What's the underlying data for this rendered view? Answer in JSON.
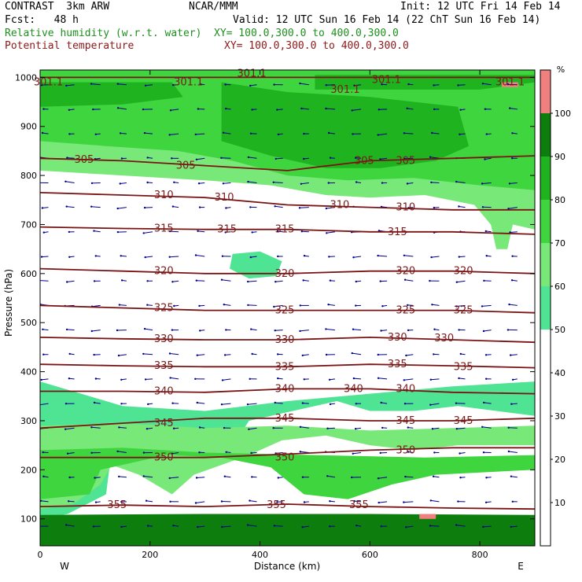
{
  "header": {
    "model": "CONTRAST  3km ARW",
    "org": "NCAR/MMM",
    "init": "Init: 12 UTC Fri 14 Feb 14",
    "fcst": "Fcst:   48 h",
    "valid": "Valid: 12 UTC Sun 16 Feb 14 (22 ChT Sun 16 Feb 14)",
    "rh_label": "Relative humidity (w.r.t. water)",
    "rh_xy": "XY= 100.0,300.0 to 400.0,300.0",
    "theta_label": "Potential temperature",
    "theta_xy": "XY= 100.0,300.0 to 400.0,300.0"
  },
  "colors": {
    "rh_text": "#1f8f1f",
    "theta_text": "#8b1a1a",
    "rh_fill": [
      "#ffffff",
      "#ffffff",
      "#ffffff",
      "#ffffff",
      "#ffffff",
      "#4fe394",
      "#78e878",
      "#3fd53f",
      "#1fb31f",
      "#0d7d0d",
      "#f08080"
    ],
    "theta_line": "#7a1414",
    "wind": "#00008b"
  },
  "chart_data": {
    "type": "heatmap",
    "xlabel": "Distance (km)",
    "ylabel": "Pressure (hPa)",
    "xlim": [
      0,
      900
    ],
    "ylim": [
      1015,
      45
    ],
    "x_ticks": [
      0,
      200,
      400,
      600,
      800
    ],
    "y_ticks": [
      100,
      200,
      300,
      400,
      500,
      600,
      700,
      800,
      900,
      1000
    ],
    "x_end_labels": {
      "left": "W",
      "right": "E"
    },
    "colorbar": {
      "unit": "%",
      "ticks": [
        10,
        20,
        30,
        40,
        50,
        60,
        70,
        80,
        90,
        100
      ],
      "levels": [
        0,
        10,
        20,
        30,
        40,
        50,
        60,
        70,
        80,
        90,
        100,
        110
      ]
    },
    "rh_regions": [
      {
        "rh": 65,
        "points": [
          [
            0,
            1015
          ],
          [
            0,
            810
          ],
          [
            150,
            800
          ],
          [
            300,
            790
          ],
          [
            420,
            780
          ],
          [
            520,
            760
          ],
          [
            600,
            755
          ],
          [
            700,
            760
          ],
          [
            790,
            740
          ],
          [
            820,
            700
          ],
          [
            830,
            650
          ],
          [
            850,
            650
          ],
          [
            860,
            700
          ],
          [
            900,
            690
          ],
          [
            900,
            1015
          ]
        ]
      },
      {
        "rh": 75,
        "points": [
          [
            0,
            1015
          ],
          [
            0,
            870
          ],
          [
            120,
            860
          ],
          [
            250,
            850
          ],
          [
            350,
            830
          ],
          [
            450,
            800
          ],
          [
            560,
            790
          ],
          [
            680,
            795
          ],
          [
            800,
            780
          ],
          [
            900,
            770
          ],
          [
            900,
            1015
          ]
        ]
      },
      {
        "rh": 85,
        "points": [
          [
            330,
            990
          ],
          [
            330,
            870
          ],
          [
            420,
            840
          ],
          [
            520,
            815
          ],
          [
            620,
            815
          ],
          [
            720,
            830
          ],
          [
            780,
            860
          ],
          [
            760,
            940
          ],
          [
            600,
            960
          ],
          [
            450,
            970
          ]
        ]
      },
      {
        "rh": 85,
        "points": [
          [
            0,
            990
          ],
          [
            0,
            940
          ],
          [
            150,
            945
          ],
          [
            260,
            960
          ],
          [
            240,
            990
          ]
        ]
      },
      {
        "rh": 85,
        "points": [
          [
            500,
            1005
          ],
          [
            500,
            975
          ],
          [
            800,
            975
          ],
          [
            900,
            990
          ],
          [
            900,
            1005
          ]
        ]
      },
      {
        "rh": 55,
        "points": [
          [
            0,
            380
          ],
          [
            0,
            100
          ],
          [
            50,
            110
          ],
          [
            120,
            150
          ],
          [
            130,
            240
          ],
          [
            190,
            220
          ],
          [
            240,
            160
          ],
          [
            280,
            210
          ],
          [
            340,
            230
          ],
          [
            380,
            300
          ],
          [
            460,
            320
          ],
          [
            540,
            340
          ],
          [
            600,
            320
          ],
          [
            680,
            320
          ],
          [
            760,
            330
          ],
          [
            900,
            310
          ],
          [
            900,
            380
          ],
          [
            750,
            370
          ],
          [
            600,
            355
          ],
          [
            450,
            340
          ],
          [
            300,
            320
          ],
          [
            150,
            330
          ]
        ]
      },
      {
        "rh": 65,
        "points": [
          [
            0,
            290
          ],
          [
            0,
            120
          ],
          [
            60,
            130
          ],
          [
            110,
            170
          ],
          [
            130,
            210
          ],
          [
            180,
            190
          ],
          [
            240,
            150
          ],
          [
            280,
            190
          ],
          [
            330,
            210
          ],
          [
            380,
            230
          ],
          [
            440,
            260
          ],
          [
            520,
            270
          ],
          [
            600,
            250
          ],
          [
            680,
            240
          ],
          [
            760,
            250
          ],
          [
            900,
            250
          ],
          [
            900,
            290
          ],
          [
            750,
            285
          ],
          [
            600,
            280
          ],
          [
            450,
            290
          ],
          [
            300,
            285
          ],
          [
            150,
            295
          ]
        ]
      },
      {
        "rh": 75,
        "points": [
          [
            0,
            240
          ],
          [
            0,
            140
          ],
          [
            90,
            150
          ],
          [
            110,
            200
          ],
          [
            230,
            230
          ],
          [
            330,
            225
          ],
          [
            420,
            205
          ],
          [
            480,
            150
          ],
          [
            560,
            140
          ],
          [
            640,
            170
          ],
          [
            720,
            190
          ],
          [
            900,
            200
          ],
          [
            900,
            230
          ],
          [
            700,
            225
          ],
          [
            500,
            230
          ],
          [
            300,
            235
          ],
          [
            150,
            245
          ]
        ]
      },
      {
        "rh": 95,
        "points": [
          [
            0,
            108
          ],
          [
            0,
            45
          ],
          [
            900,
            45
          ],
          [
            900,
            108
          ],
          [
            600,
            110
          ],
          [
            300,
            110
          ]
        ]
      },
      {
        "rh": 55,
        "points": [
          [
            350,
            640
          ],
          [
            345,
            610
          ],
          [
            380,
            590
          ],
          [
            430,
            595
          ],
          [
            440,
            625
          ],
          [
            400,
            645
          ]
        ]
      },
      {
        "rh": 105,
        "points": [
          [
            690,
            110
          ],
          [
            690,
            100
          ],
          [
            720,
            100
          ],
          [
            720,
            110
          ]
        ]
      },
      {
        "rh": 105,
        "points": [
          [
            840,
            990
          ],
          [
            840,
            980
          ],
          [
            870,
            980
          ],
          [
            870,
            990
          ]
        ]
      }
    ],
    "theta_contours": [
      {
        "level": 301.1,
        "points": [
          [
            0,
            1000
          ],
          [
            900,
            1000
          ]
        ]
      },
      {
        "level": 305,
        "points": [
          [
            0,
            835
          ],
          [
            150,
            830
          ],
          [
            300,
            820
          ],
          [
            450,
            810
          ],
          [
            600,
            830
          ],
          [
            750,
            835
          ],
          [
            900,
            840
          ]
        ]
      },
      {
        "level": 310,
        "points": [
          [
            0,
            765
          ],
          [
            150,
            760
          ],
          [
            300,
            755
          ],
          [
            450,
            740
          ],
          [
            600,
            735
          ],
          [
            750,
            730
          ],
          [
            900,
            730
          ]
        ]
      },
      {
        "level": 315,
        "points": [
          [
            0,
            695
          ],
          [
            150,
            692
          ],
          [
            300,
            690
          ],
          [
            450,
            690
          ],
          [
            600,
            685
          ],
          [
            750,
            685
          ],
          [
            900,
            680
          ]
        ]
      },
      {
        "level": 320,
        "points": [
          [
            0,
            610
          ],
          [
            150,
            605
          ],
          [
            300,
            600
          ],
          [
            450,
            600
          ],
          [
            600,
            605
          ],
          [
            750,
            605
          ],
          [
            900,
            600
          ]
        ]
      },
      {
        "level": 325,
        "points": [
          [
            0,
            535
          ],
          [
            150,
            530
          ],
          [
            300,
            525
          ],
          [
            450,
            525
          ],
          [
            600,
            525
          ],
          [
            750,
            525
          ],
          [
            900,
            520
          ]
        ]
      },
      {
        "level": 330,
        "points": [
          [
            0,
            470
          ],
          [
            150,
            467
          ],
          [
            300,
            465
          ],
          [
            450,
            465
          ],
          [
            600,
            470
          ],
          [
            750,
            465
          ],
          [
            900,
            460
          ]
        ]
      },
      {
        "level": 335,
        "points": [
          [
            0,
            415
          ],
          [
            150,
            412
          ],
          [
            300,
            410
          ],
          [
            450,
            410
          ],
          [
            600,
            415
          ],
          [
            750,
            412
          ],
          [
            900,
            408
          ]
        ]
      },
      {
        "level": 340,
        "points": [
          [
            0,
            360
          ],
          [
            150,
            360
          ],
          [
            300,
            358
          ],
          [
            450,
            365
          ],
          [
            600,
            365
          ],
          [
            750,
            358
          ],
          [
            900,
            355
          ]
        ]
      },
      {
        "level": 345,
        "points": [
          [
            0,
            285
          ],
          [
            150,
            295
          ],
          [
            300,
            305
          ],
          [
            450,
            305
          ],
          [
            600,
            300
          ],
          [
            750,
            300
          ],
          [
            900,
            305
          ]
        ]
      },
      {
        "level": 350,
        "points": [
          [
            0,
            225
          ],
          [
            150,
            225
          ],
          [
            300,
            225
          ],
          [
            450,
            232
          ],
          [
            600,
            240
          ],
          [
            750,
            245
          ],
          [
            900,
            245
          ]
        ]
      },
      {
        "level": 355,
        "points": [
          [
            0,
            125
          ],
          [
            150,
            128
          ],
          [
            300,
            125
          ],
          [
            450,
            130
          ],
          [
            600,
            125
          ],
          [
            750,
            122
          ],
          [
            900,
            120
          ]
        ]
      }
    ],
    "theta_labels": [
      {
        "text": "355",
        "x": 140,
        "p": 128
      },
      {
        "text": "355",
        "x": 430,
        "p": 128
      },
      {
        "text": "355",
        "x": 580,
        "p": 128
      },
      {
        "text": "350",
        "x": 225,
        "p": 225
      },
      {
        "text": "350",
        "x": 445,
        "p": 225
      },
      {
        "text": "350",
        "x": 665,
        "p": 240
      },
      {
        "text": "345",
        "x": 225,
        "p": 295
      },
      {
        "text": "345",
        "x": 445,
        "p": 305
      },
      {
        "text": "345",
        "x": 665,
        "p": 300
      },
      {
        "text": "345",
        "x": 770,
        "p": 300
      },
      {
        "text": "340",
        "x": 225,
        "p": 360
      },
      {
        "text": "340",
        "x": 445,
        "p": 365
      },
      {
        "text": "340",
        "x": 570,
        "p": 365
      },
      {
        "text": "340",
        "x": 665,
        "p": 365
      },
      {
        "text": "335",
        "x": 225,
        "p": 412
      },
      {
        "text": "335",
        "x": 445,
        "p": 410
      },
      {
        "text": "335",
        "x": 650,
        "p": 415
      },
      {
        "text": "335",
        "x": 770,
        "p": 410
      },
      {
        "text": "330",
        "x": 225,
        "p": 467
      },
      {
        "text": "330",
        "x": 445,
        "p": 465
      },
      {
        "text": "330",
        "x": 650,
        "p": 470
      },
      {
        "text": "330",
        "x": 735,
        "p": 468
      },
      {
        "text": "325",
        "x": 225,
        "p": 530
      },
      {
        "text": "325",
        "x": 445,
        "p": 525
      },
      {
        "text": "325",
        "x": 665,
        "p": 525
      },
      {
        "text": "325",
        "x": 770,
        "p": 525
      },
      {
        "text": "320",
        "x": 225,
        "p": 605
      },
      {
        "text": "320",
        "x": 445,
        "p": 600
      },
      {
        "text": "320",
        "x": 665,
        "p": 605
      },
      {
        "text": "320",
        "x": 770,
        "p": 605
      },
      {
        "text": "315",
        "x": 225,
        "p": 692
      },
      {
        "text": "315",
        "x": 340,
        "p": 690
      },
      {
        "text": "315",
        "x": 445,
        "p": 690
      },
      {
        "text": "315",
        "x": 650,
        "p": 685
      },
      {
        "text": "310",
        "x": 225,
        "p": 760
      },
      {
        "text": "310",
        "x": 335,
        "p": 755
      },
      {
        "text": "310",
        "x": 545,
        "p": 740
      },
      {
        "text": "310",
        "x": 665,
        "p": 735
      },
      {
        "text": "305",
        "x": 80,
        "p": 832
      },
      {
        "text": "305",
        "x": 265,
        "p": 820
      },
      {
        "text": "305",
        "x": 590,
        "p": 830
      },
      {
        "text": "305",
        "x": 665,
        "p": 830
      },
      {
        "text": "301.1",
        "x": 15,
        "p": 990
      },
      {
        "text": "301.1",
        "x": 270,
        "p": 990
      },
      {
        "text": "301.1",
        "x": 385,
        "p": 1008
      },
      {
        "text": "301.1",
        "x": 555,
        "p": 975
      },
      {
        "text": "301.1",
        "x": 630,
        "p": 995
      },
      {
        "text": "301.1",
        "x": 855,
        "p": 990
      }
    ],
    "wind_field": {
      "nx": 19,
      "ny": 19,
      "x_step_km": 47.4,
      "p_top": 85,
      "p_bottom": 985
    }
  }
}
